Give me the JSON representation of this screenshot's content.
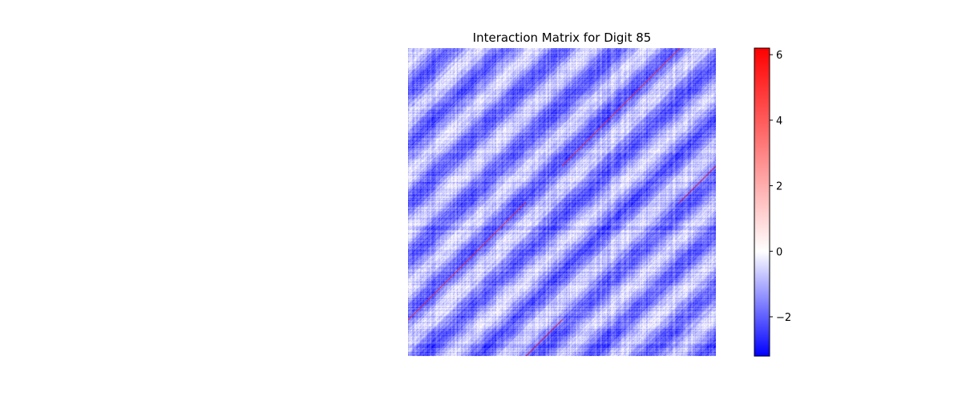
{
  "chart_data": {
    "type": "heatmap",
    "title": "Interaction Matrix for Digit 85",
    "xlabel": "",
    "ylabel": "",
    "axes_visible": false,
    "colormap": [
      "#0000ff",
      "#ffffff",
      "#ff0000"
    ],
    "matrix_pattern": "diagonal banding with red main-line diagonals on a mostly blue/white field",
    "value_range": [
      -3.2,
      6.2
    ],
    "colorbar": {
      "ticks": [
        -2,
        0,
        2,
        4,
        6
      ],
      "tick_labels": [
        "−2",
        "0",
        "2",
        "4",
        "6"
      ],
      "min": -3.2,
      "max": 6.2
    }
  }
}
